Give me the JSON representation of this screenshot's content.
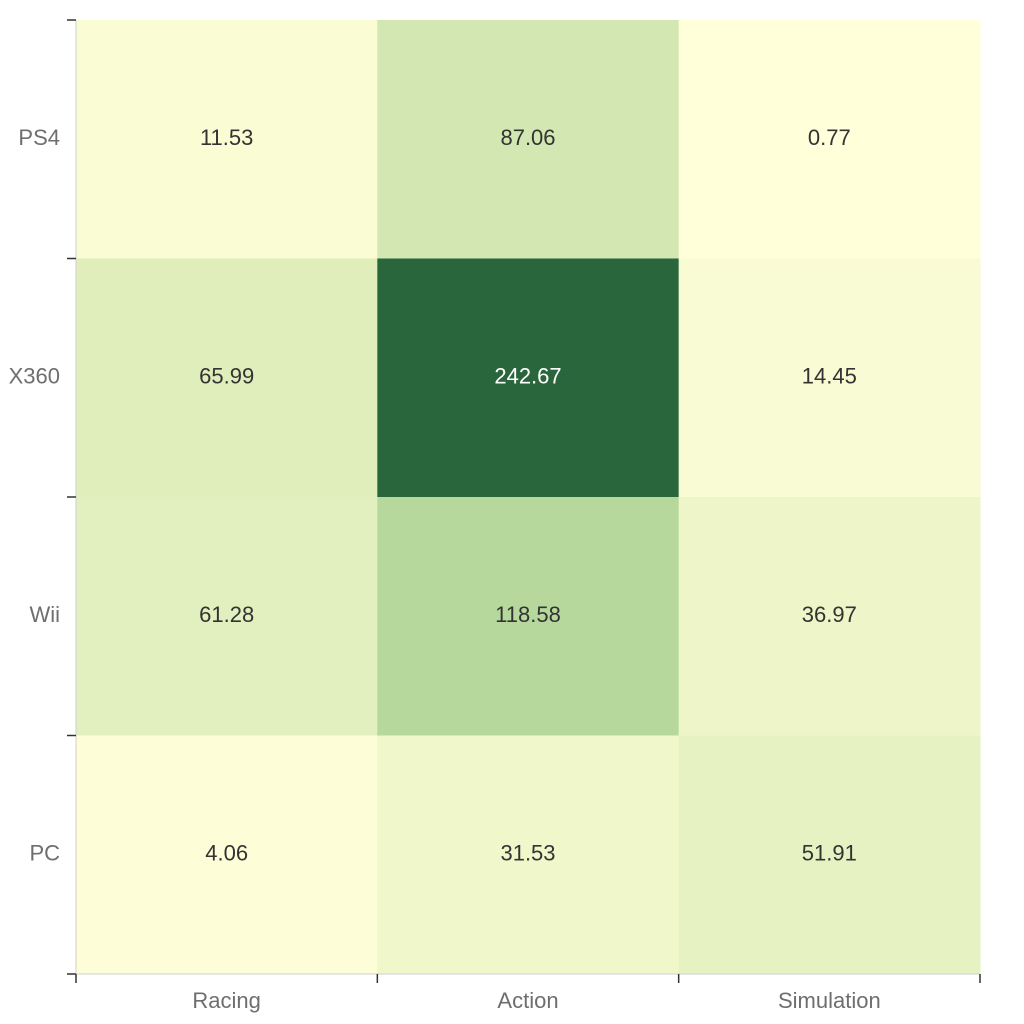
{
  "chart_data": {
    "type": "heatmap",
    "title": "",
    "xlabel": "",
    "ylabel": "",
    "x_categories": [
      "Racing",
      "Action",
      "Simulation"
    ],
    "y_categories": [
      "PS4",
      "X360",
      "Wii",
      "PC"
    ],
    "values": [
      [
        11.53,
        87.06,
        0.77
      ],
      [
        65.99,
        242.67,
        14.45
      ],
      [
        61.28,
        118.58,
        36.97
      ],
      [
        4.06,
        31.53,
        51.91
      ]
    ],
    "value_range": [
      0,
      242.67
    ],
    "colorscale": [
      "#ffffd9",
      "#d9eab6",
      "#8dc47e",
      "#2a663c"
    ],
    "legend": "none",
    "grid": false
  }
}
